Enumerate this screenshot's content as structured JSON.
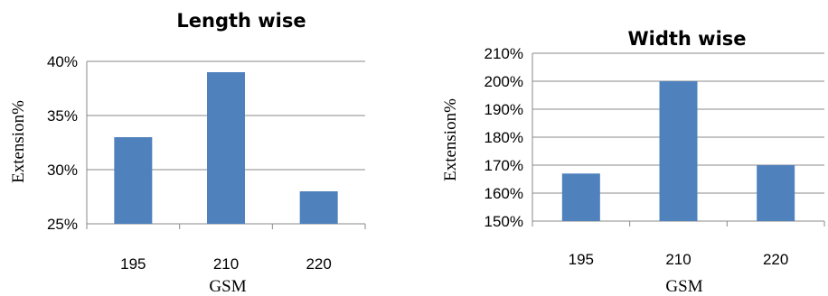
{
  "chart_data": [
    {
      "type": "bar",
      "title": "Length wise",
      "xlabel": "GSM",
      "ylabel": "Extension%",
      "categories": [
        "195",
        "210",
        "220"
      ],
      "values": [
        33,
        39,
        28
      ],
      "ylim": [
        25,
        40
      ],
      "yticks": [
        25,
        30,
        35,
        40
      ],
      "ytick_labels": [
        "25%",
        "30%",
        "35%",
        "40%"
      ],
      "grid": true,
      "bar_color": "#4f81bd"
    },
    {
      "type": "bar",
      "title": "Width wise",
      "xlabel": "GSM",
      "ylabel": "Extension%",
      "categories": [
        "195",
        "210",
        "220"
      ],
      "values": [
        167,
        200,
        170
      ],
      "ylim": [
        150,
        210
      ],
      "yticks": [
        150,
        160,
        170,
        180,
        190,
        200,
        210
      ],
      "ytick_labels": [
        "150%",
        "160%",
        "170%",
        "180%",
        "190%",
        "200%",
        "210%"
      ],
      "grid": true,
      "bar_color": "#4f81bd"
    }
  ]
}
